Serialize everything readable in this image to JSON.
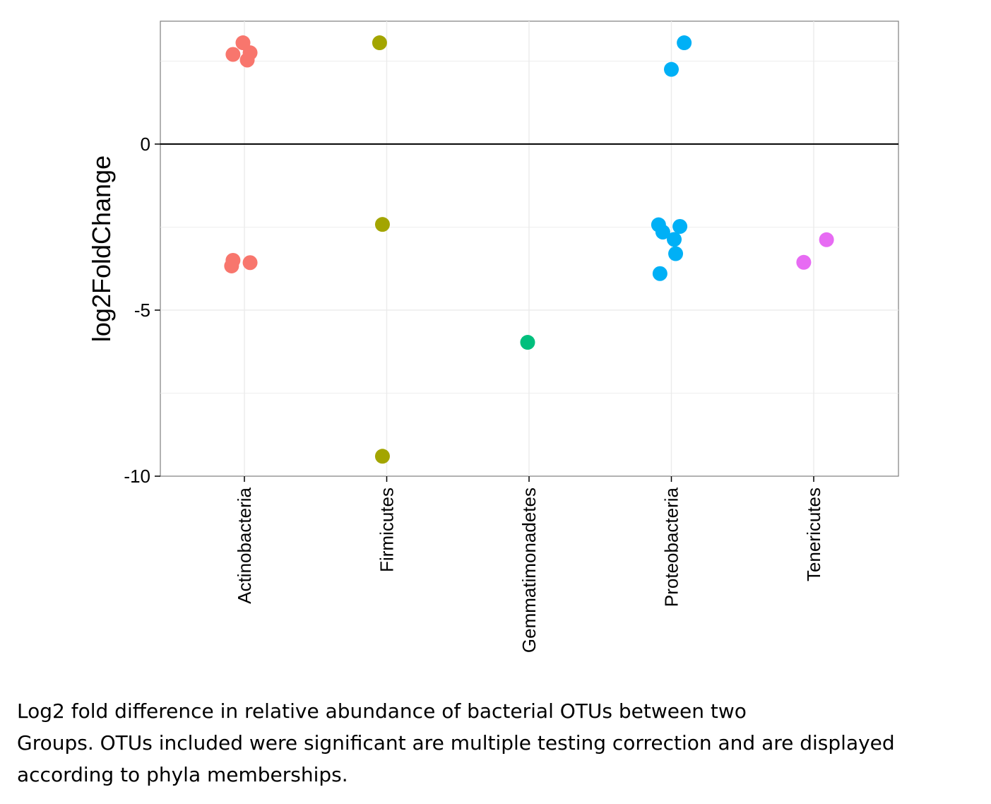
{
  "chart_data": {
    "type": "scatter",
    "title": "",
    "xlabel": "",
    "ylabel": "log2FoldChange",
    "categories": [
      "Actinobacteria",
      "Firmicutes",
      "Gemmatimonadetes",
      "Proteobacteria",
      "Tenericutes"
    ],
    "ylim": [
      -10,
      3.7
    ],
    "yticks": [
      0,
      -5,
      -10
    ],
    "yticklabels": [
      "0",
      "-5",
      "-10"
    ],
    "reference_line": 0,
    "grid": true,
    "colors": {
      "Actinobacteria": "#F8766D",
      "Firmicutes": "#A3A500",
      "Gemmatimonadetes": "#00BF7D",
      "Proteobacteria": "#00B0F6",
      "Tenericutes": "#E76BF3"
    },
    "points": [
      {
        "category": "Actinobacteria",
        "jitter": -0.01,
        "y": 3.05
      },
      {
        "category": "Actinobacteria",
        "jitter": 0.04,
        "y": 2.75
      },
      {
        "category": "Actinobacteria",
        "jitter": -0.08,
        "y": 2.7
      },
      {
        "category": "Actinobacteria",
        "jitter": 0.02,
        "y": 2.53
      },
      {
        "category": "Actinobacteria",
        "jitter": -0.08,
        "y": -3.5
      },
      {
        "category": "Actinobacteria",
        "jitter": 0.04,
        "y": -3.57
      },
      {
        "category": "Actinobacteria",
        "jitter": -0.09,
        "y": -3.67
      },
      {
        "category": "Firmicutes",
        "jitter": -0.05,
        "y": 3.05
      },
      {
        "category": "Firmicutes",
        "jitter": -0.03,
        "y": -2.42
      },
      {
        "category": "Firmicutes",
        "jitter": -0.03,
        "y": -9.4
      },
      {
        "category": "Gemmatimonadetes",
        "jitter": -0.01,
        "y": -5.97
      },
      {
        "category": "Proteobacteria",
        "jitter": 0.09,
        "y": 3.05
      },
      {
        "category": "Proteobacteria",
        "jitter": 0.0,
        "y": 2.25
      },
      {
        "category": "Proteobacteria",
        "jitter": -0.09,
        "y": -2.43
      },
      {
        "category": "Proteobacteria",
        "jitter": 0.06,
        "y": -2.48
      },
      {
        "category": "Proteobacteria",
        "jitter": -0.06,
        "y": -2.65
      },
      {
        "category": "Proteobacteria",
        "jitter": 0.02,
        "y": -2.87
      },
      {
        "category": "Proteobacteria",
        "jitter": 0.03,
        "y": -3.3
      },
      {
        "category": "Proteobacteria",
        "jitter": -0.08,
        "y": -3.9
      },
      {
        "category": "Tenericutes",
        "jitter": 0.09,
        "y": -2.88
      },
      {
        "category": "Tenericutes",
        "jitter": -0.07,
        "y": -3.56
      }
    ]
  },
  "caption": {
    "line1": "Log2 fold difference in relative abundance of bacterial OTUs between two",
    "line2": "Groups.  OTUs included were significant are multiple testing correction and are displayed",
    "line3": "according to phyla memberships."
  }
}
